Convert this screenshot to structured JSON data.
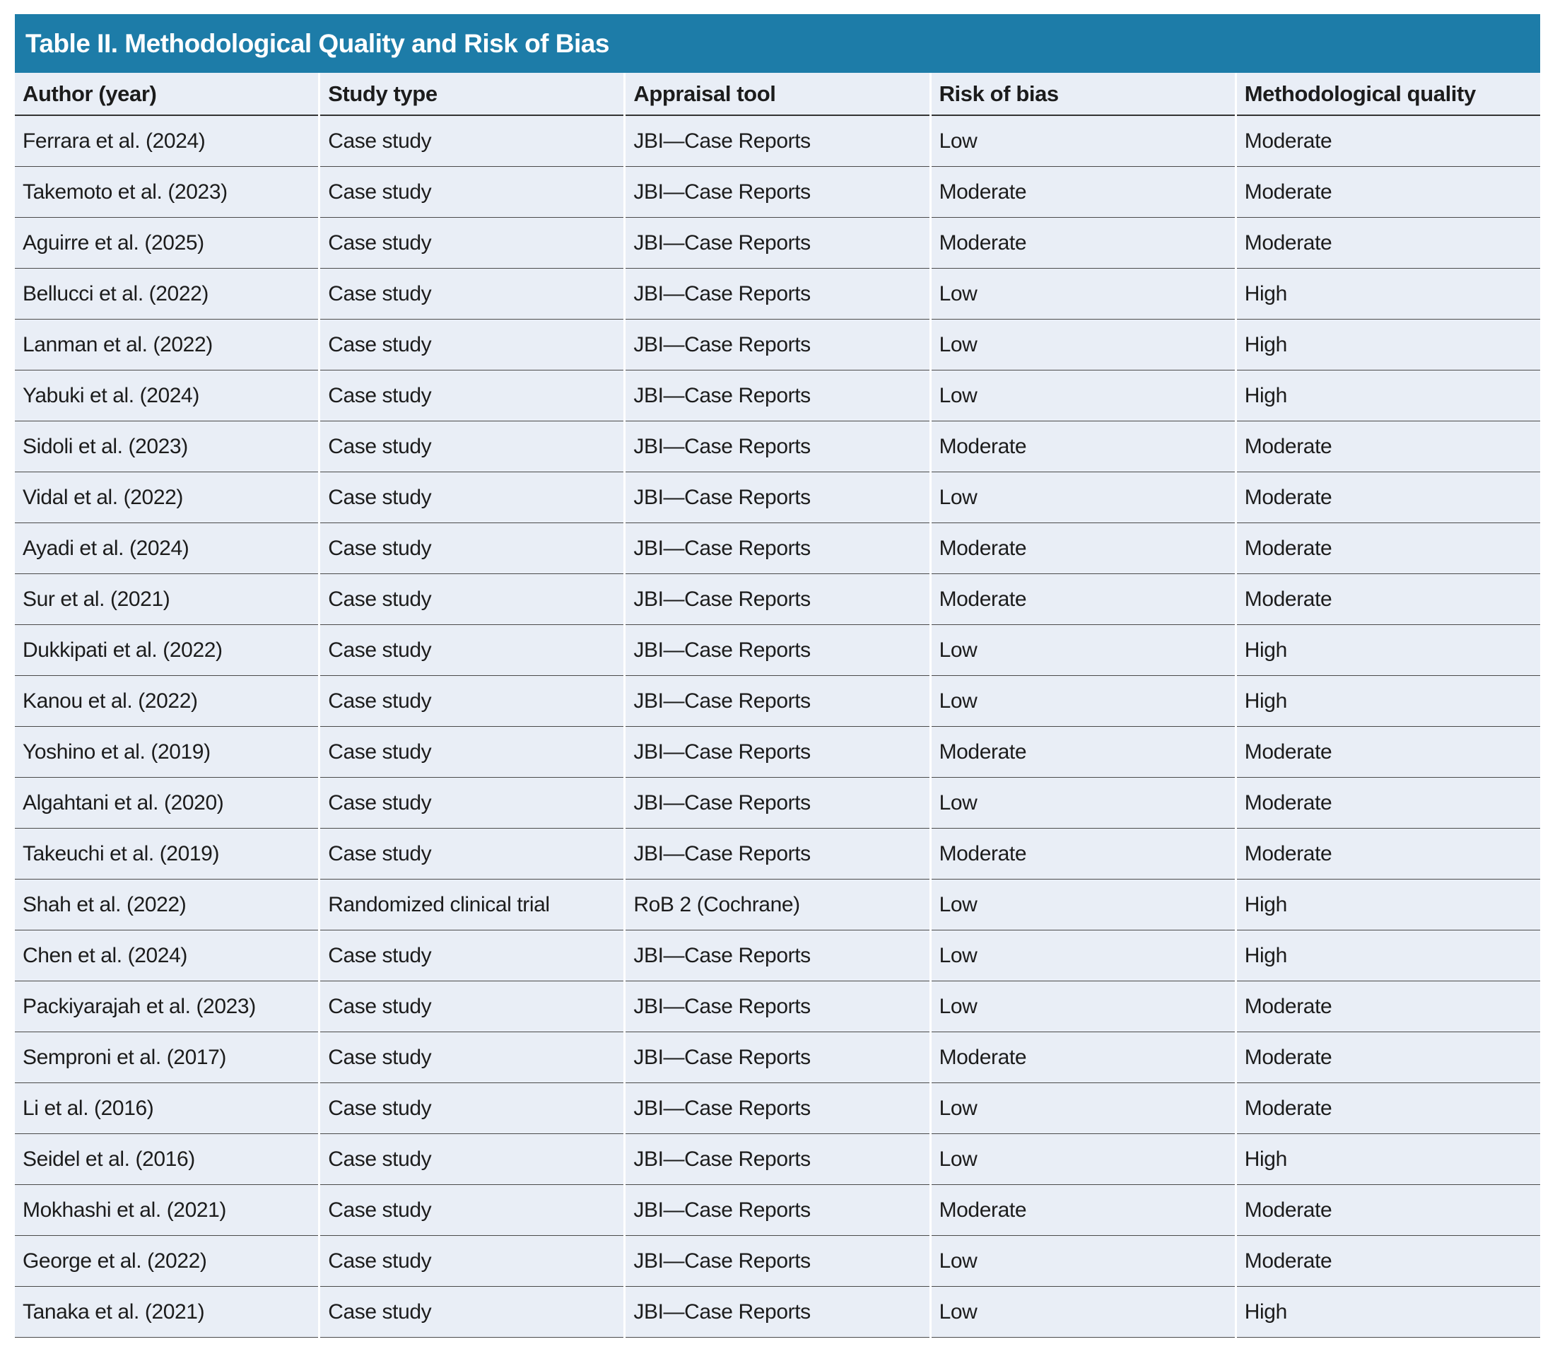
{
  "title": "Table II. Methodological Quality and Risk of Bias",
  "colors": {
    "title_bar_bg": "#1d7ca8",
    "title_text": "#ffffff",
    "cell_bg": "#e9eef6",
    "rule_header": "#333333",
    "rule_row": "#4a4a4a",
    "body_text": "#1c1c1c"
  },
  "table": {
    "columns": [
      "Author (year)",
      "Study type",
      "Appraisal tool",
      "Risk of bias",
      "Methodological quality"
    ],
    "rows": [
      [
        "Ferrara et al. (2024)",
        "Case study",
        "JBI—Case Reports",
        "Low",
        "Moderate"
      ],
      [
        "Takemoto et al. (2023)",
        "Case study",
        "JBI—Case Reports",
        "Moderate",
        "Moderate"
      ],
      [
        "Aguirre et al. (2025)",
        "Case study",
        "JBI—Case Reports",
        "Moderate",
        "Moderate"
      ],
      [
        "Bellucci et al. (2022)",
        "Case study",
        "JBI—Case Reports",
        "Low",
        "High"
      ],
      [
        "Lanman et al. (2022)",
        "Case study",
        "JBI—Case Reports",
        "Low",
        "High"
      ],
      [
        "Yabuki et al. (2024)",
        "Case study",
        "JBI—Case Reports",
        "Low",
        "High"
      ],
      [
        "Sidoli et al. (2023)",
        "Case study",
        "JBI—Case Reports",
        "Moderate",
        "Moderate"
      ],
      [
        "Vidal et al. (2022)",
        "Case study",
        "JBI—Case Reports",
        "Low",
        "Moderate"
      ],
      [
        "Ayadi et al. (2024)",
        "Case study",
        "JBI—Case Reports",
        "Moderate",
        "Moderate"
      ],
      [
        "Sur et al. (2021)",
        "Case study",
        "JBI—Case Reports",
        "Moderate",
        "Moderate"
      ],
      [
        "Dukkipati et al. (2022)",
        "Case study",
        "JBI—Case Reports",
        "Low",
        "High"
      ],
      [
        "Kanou et al. (2022)",
        "Case study",
        "JBI—Case Reports",
        "Low",
        "High"
      ],
      [
        "Yoshino et al. (2019)",
        "Case study",
        "JBI—Case Reports",
        "Moderate",
        "Moderate"
      ],
      [
        "Algahtani et al. (2020)",
        "Case study",
        "JBI—Case Reports",
        "Low",
        "Moderate"
      ],
      [
        "Takeuchi et al. (2019)",
        "Case study",
        "JBI—Case Reports",
        "Moderate",
        "Moderate"
      ],
      [
        "Shah et al. (2022)",
        "Randomized clinical trial",
        "RoB 2 (Cochrane)",
        "Low",
        "High"
      ],
      [
        "Chen et al. (2024)",
        "Case study",
        "JBI—Case Reports",
        "Low",
        "High"
      ],
      [
        "Packiyarajah et al. (2023)",
        "Case study",
        "JBI—Case Reports",
        "Low",
        "Moderate"
      ],
      [
        "Semproni et al. (2017)",
        "Case study",
        "JBI—Case Reports",
        "Moderate",
        "Moderate"
      ],
      [
        "Li et al. (2016)",
        "Case study",
        "JBI—Case Reports",
        "Low",
        "Moderate"
      ],
      [
        "Seidel et al. (2016)",
        "Case study",
        "JBI—Case Reports",
        "Low",
        "High"
      ],
      [
        "Mokhashi et al. (2021)",
        "Case study",
        "JBI—Case Reports",
        "Moderate",
        "Moderate"
      ],
      [
        "George et al. (2022)",
        "Case study",
        "JBI—Case Reports",
        "Low",
        "Moderate"
      ],
      [
        "Tanaka et al. (2021)",
        "Case study",
        "JBI—Case Reports",
        "Low",
        "High"
      ]
    ]
  }
}
